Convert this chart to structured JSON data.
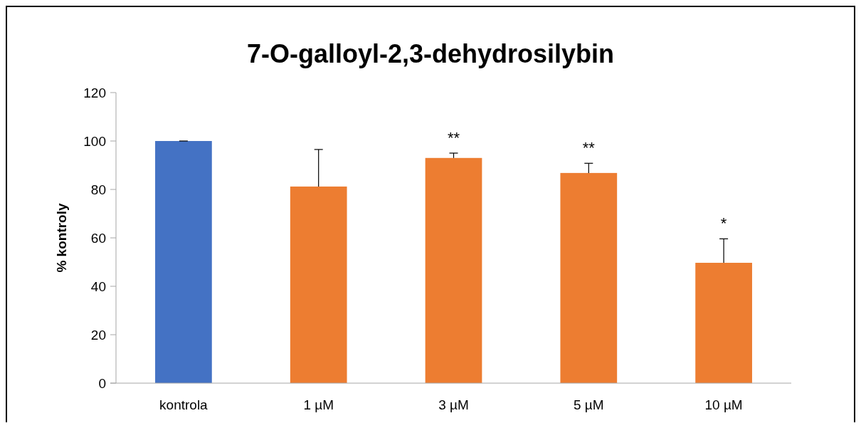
{
  "chart_data": {
    "type": "bar",
    "title": "7-O-galloyl-2,3-dehydrosilybin",
    "ylabel": "% kontroly",
    "categories": [
      "kontrola",
      "1 µM",
      "3 µM",
      "5 µM",
      "10 µM"
    ],
    "values": [
      100,
      81.2,
      93,
      86.8,
      49.7
    ],
    "colors": [
      "#4472c4",
      "#ed7d31",
      "#ed7d31",
      "#ed7d31",
      "#ed7d31"
    ],
    "errors": [
      [
        100,
        100
      ],
      [
        81.2,
        96.5
      ],
      [
        93,
        95
      ],
      [
        86.8,
        90.8
      ],
      [
        49.7,
        59.6
      ]
    ],
    "ylim": [
      0,
      120
    ],
    "yticks": [
      0,
      20,
      40,
      60,
      80,
      100,
      120
    ],
    "grid": false,
    "annotations": [
      {
        "text": "**",
        "x": "3 µM",
        "y": 95
      },
      {
        "text": "**",
        "x": "5 µM",
        "y": 90.8
      },
      {
        "text": "*",
        "x": "10 µM",
        "y": 59.6
      }
    ]
  }
}
